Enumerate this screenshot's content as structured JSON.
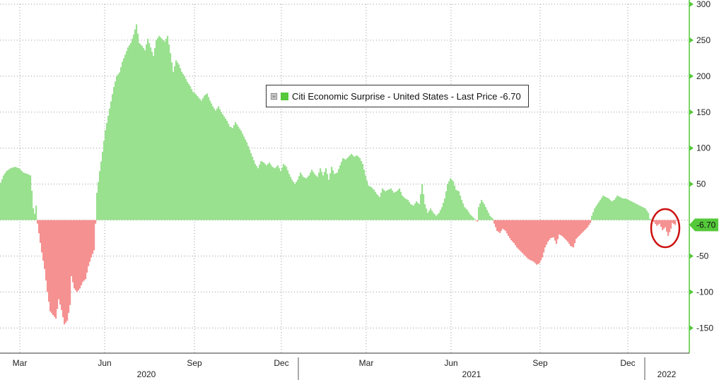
{
  "chart_data": {
    "type": "bar",
    "title": "",
    "legend": {
      "text": "Citi Economic Surprise - United States - Last Price -6.70",
      "placement": "top-center"
    },
    "last_value_label": "-6.70",
    "y_axis": {
      "position": "right",
      "ylim": [
        -185,
        300
      ],
      "ticks": [
        300,
        250,
        200,
        150,
        100,
        50,
        -50,
        -100,
        -150
      ]
    },
    "x_axis": {
      "month_labels": [
        "Mar",
        "Jun",
        "Sep",
        "Dec",
        "Mar",
        "Jun",
        "Sep",
        "Dec"
      ],
      "year_labels": [
        "2020",
        "2021",
        "2022"
      ]
    },
    "grid": true,
    "colors": {
      "positive": "#99e08f",
      "negative": "#f59191",
      "axis": "#55c93a",
      "grid": "#999999",
      "highlight": "#cc1111",
      "legend_swatch": "#55c93a"
    },
    "series": [
      {
        "name": "Citi Economic Surprise - United States",
        "anchors": [
          [
            0,
            52
          ],
          [
            4,
            62
          ],
          [
            8,
            68
          ],
          [
            14,
            72
          ],
          [
            20,
            74
          ],
          [
            26,
            72
          ],
          [
            32,
            66
          ],
          [
            38,
            64
          ],
          [
            42,
            62
          ],
          [
            45,
            30
          ],
          [
            47,
            3
          ],
          [
            50,
            20
          ],
          [
            52,
            -5
          ],
          [
            55,
            -25
          ],
          [
            58,
            -45
          ],
          [
            62,
            -68
          ],
          [
            66,
            -100
          ],
          [
            70,
            -127
          ],
          [
            74,
            -132
          ],
          [
            78,
            -137
          ],
          [
            82,
            -110
          ],
          [
            86,
            -125
          ],
          [
            90,
            -145
          ],
          [
            94,
            -140
          ],
          [
            98,
            -118
          ],
          [
            100,
            -78
          ],
          [
            104,
            -95
          ],
          [
            108,
            -100
          ],
          [
            112,
            -95
          ],
          [
            116,
            -86
          ],
          [
            120,
            -82
          ],
          [
            124,
            -64
          ],
          [
            128,
            -52
          ],
          [
            132,
            -42
          ],
          [
            134,
            -5
          ],
          [
            136,
            38
          ],
          [
            140,
            68
          ],
          [
            144,
            95
          ],
          [
            148,
            125
          ],
          [
            152,
            145
          ],
          [
            156,
            165
          ],
          [
            160,
            185
          ],
          [
            164,
            200
          ],
          [
            168,
            205
          ],
          [
            172,
            220
          ],
          [
            176,
            230
          ],
          [
            180,
            240
          ],
          [
            184,
            246
          ],
          [
            188,
            258
          ],
          [
            192,
            272
          ],
          [
            196,
            246
          ],
          [
            200,
            242
          ],
          [
            204,
            236
          ],
          [
            208,
            252
          ],
          [
            212,
            240
          ],
          [
            216,
            228
          ],
          [
            220,
            250
          ],
          [
            224,
            256
          ],
          [
            228,
            252
          ],
          [
            232,
            248
          ],
          [
            236,
            256
          ],
          [
            240,
            232
          ],
          [
            244,
            206
          ],
          [
            248,
            222
          ],
          [
            252,
            216
          ],
          [
            256,
            206
          ],
          [
            260,
            200
          ],
          [
            264,
            192
          ],
          [
            268,
            186
          ],
          [
            272,
            178
          ],
          [
            276,
            175
          ],
          [
            280,
            170
          ],
          [
            284,
            166
          ],
          [
            288,
            173
          ],
          [
            292,
            176
          ],
          [
            296,
            166
          ],
          [
            300,
            158
          ],
          [
            304,
            152
          ],
          [
            308,
            158
          ],
          [
            312,
            150
          ],
          [
            316,
            144
          ],
          [
            320,
            138
          ],
          [
            324,
            130
          ],
          [
            328,
            128
          ],
          [
            332,
            136
          ],
          [
            336,
            130
          ],
          [
            340,
            124
          ],
          [
            344,
            116
          ],
          [
            348,
            108
          ],
          [
            352,
            98
          ],
          [
            356,
            88
          ],
          [
            360,
            78
          ],
          [
            364,
            72
          ],
          [
            368,
            82
          ],
          [
            372,
            80
          ],
          [
            376,
            76
          ],
          [
            380,
            80
          ],
          [
            384,
            74
          ],
          [
            388,
            72
          ],
          [
            392,
            76
          ],
          [
            396,
            68
          ],
          [
            400,
            78
          ],
          [
            404,
            74
          ],
          [
            408,
            64
          ],
          [
            412,
            56
          ],
          [
            416,
            50
          ],
          [
            420,
            56
          ],
          [
            424,
            66
          ],
          [
            428,
            60
          ],
          [
            432,
            58
          ],
          [
            436,
            62
          ],
          [
            440,
            70
          ],
          [
            444,
            64
          ],
          [
            448,
            60
          ],
          [
            452,
            72
          ],
          [
            456,
            62
          ],
          [
            460,
            72
          ],
          [
            464,
            56
          ],
          [
            468,
            74
          ],
          [
            472,
            64
          ],
          [
            476,
            66
          ],
          [
            480,
            76
          ],
          [
            484,
            86
          ],
          [
            488,
            84
          ],
          [
            492,
            88
          ],
          [
            496,
            92
          ],
          [
            500,
            88
          ],
          [
            504,
            90
          ],
          [
            508,
            86
          ],
          [
            512,
            78
          ],
          [
            516,
            62
          ],
          [
            520,
            48
          ],
          [
            524,
            46
          ],
          [
            528,
            42
          ],
          [
            532,
            36
          ],
          [
            536,
            32
          ],
          [
            540,
            44
          ],
          [
            544,
            40
          ],
          [
            548,
            42
          ],
          [
            552,
            44
          ],
          [
            556,
            38
          ],
          [
            560,
            40
          ],
          [
            564,
            44
          ],
          [
            568,
            34
          ],
          [
            572,
            30
          ],
          [
            576,
            28
          ],
          [
            580,
            22
          ],
          [
            584,
            20
          ],
          [
            588,
            26
          ],
          [
            592,
            22
          ],
          [
            596,
            50
          ],
          [
            600,
            22
          ],
          [
            604,
            10
          ],
          [
            608,
            16
          ],
          [
            612,
            10
          ],
          [
            616,
            6
          ],
          [
            620,
            10
          ],
          [
            624,
            18
          ],
          [
            628,
            30
          ],
          [
            632,
            50
          ],
          [
            636,
            58
          ],
          [
            640,
            54
          ],
          [
            644,
            42
          ],
          [
            648,
            40
          ],
          [
            652,
            28
          ],
          [
            656,
            18
          ],
          [
            660,
            14
          ],
          [
            664,
            8
          ],
          [
            668,
            4
          ],
          [
            672,
            0
          ],
          [
            674,
            -2
          ],
          [
            676,
            18
          ],
          [
            680,
            28
          ],
          [
            684,
            22
          ],
          [
            688,
            14
          ],
          [
            692,
            6
          ],
          [
            696,
            2
          ],
          [
            698,
            -5
          ],
          [
            702,
            -15
          ],
          [
            706,
            -18
          ],
          [
            710,
            -12
          ],
          [
            714,
            -15
          ],
          [
            718,
            -22
          ],
          [
            722,
            -28
          ],
          [
            726,
            -32
          ],
          [
            730,
            -38
          ],
          [
            734,
            -42
          ],
          [
            738,
            -46
          ],
          [
            742,
            -50
          ],
          [
            746,
            -54
          ],
          [
            750,
            -56
          ],
          [
            754,
            -58
          ],
          [
            758,
            -62
          ],
          [
            762,
            -60
          ],
          [
            766,
            -52
          ],
          [
            770,
            -38
          ],
          [
            774,
            -30
          ],
          [
            778,
            -25
          ],
          [
            782,
            -24
          ],
          [
            786,
            -33
          ],
          [
            790,
            -20
          ],
          [
            794,
            -22
          ],
          [
            798,
            -26
          ],
          [
            802,
            -30
          ],
          [
            806,
            -36
          ],
          [
            810,
            -38
          ],
          [
            814,
            -26
          ],
          [
            818,
            -22
          ],
          [
            822,
            -18
          ],
          [
            826,
            -14
          ],
          [
            830,
            -10
          ],
          [
            834,
            -4
          ],
          [
            836,
            6
          ],
          [
            840,
            16
          ],
          [
            844,
            22
          ],
          [
            848,
            28
          ],
          [
            852,
            34
          ],
          [
            856,
            32
          ],
          [
            860,
            30
          ],
          [
            864,
            26
          ],
          [
            868,
            28
          ],
          [
            872,
            34
          ],
          [
            876,
            32
          ],
          [
            880,
            30
          ],
          [
            884,
            30
          ],
          [
            888,
            28
          ],
          [
            892,
            26
          ],
          [
            896,
            24
          ],
          [
            900,
            22
          ],
          [
            904,
            20
          ],
          [
            908,
            18
          ],
          [
            912,
            16
          ],
          [
            916,
            10
          ],
          [
            918,
            2
          ],
          [
            922,
            0
          ],
          [
            928,
            -8
          ],
          [
            932,
            -5
          ],
          [
            936,
            -14
          ],
          [
            940,
            -10
          ],
          [
            944,
            -22
          ],
          [
            948,
            -12
          ],
          [
            950,
            -4
          ],
          [
            954,
            -6.7
          ]
        ]
      }
    ]
  }
}
